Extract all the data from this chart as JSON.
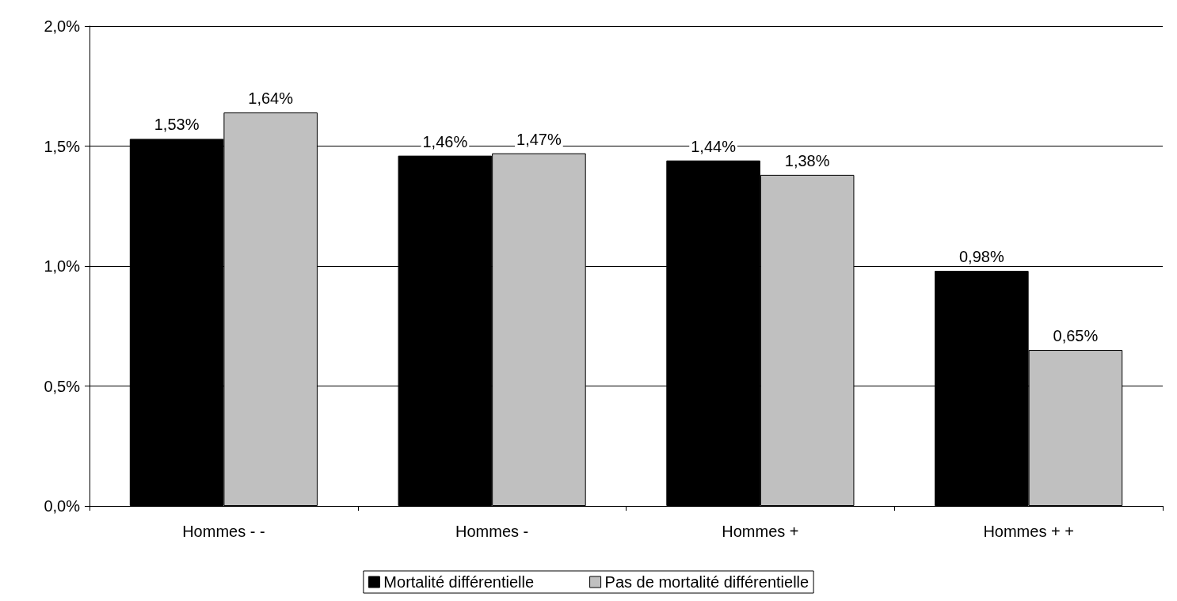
{
  "chart_data": {
    "type": "bar",
    "categories": [
      "Hommes - -",
      "Hommes -",
      "Hommes +",
      "Hommes + +"
    ],
    "series": [
      {
        "name": "Mortalité différentielle",
        "color": "#000000",
        "values": [
          1.53,
          1.46,
          1.44,
          0.98
        ],
        "value_labels": [
          "1,53%",
          "1,46%",
          "1,44%",
          "0,98%"
        ]
      },
      {
        "name": "Pas de mortalité différentielle",
        "color": "#c0c0c0",
        "values": [
          1.64,
          1.47,
          1.38,
          0.65
        ],
        "value_labels": [
          "1,64%",
          "1,47%",
          "1,38%",
          "0,65%"
        ]
      }
    ],
    "ylim": [
      0,
      2
    ],
    "yticks": [
      {
        "value": 0,
        "label": "0,0%"
      },
      {
        "value": 0.5,
        "label": "0,5%"
      },
      {
        "value": 1,
        "label": "1,0%"
      },
      {
        "value": 1.5,
        "label": "1,5%"
      },
      {
        "value": 2,
        "label": "2,0%"
      }
    ],
    "grid": "y",
    "legend": "bottom"
  }
}
